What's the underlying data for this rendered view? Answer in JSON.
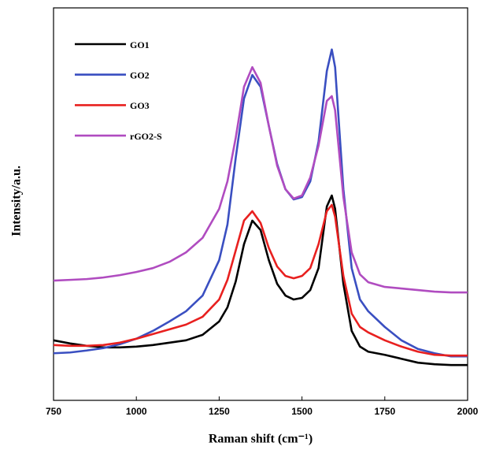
{
  "chart_data": {
    "type": "line",
    "x_label": "Raman shift (cm⁻¹)",
    "y_label": "Intensity/a.u.",
    "x": [
      750,
      800,
      850,
      900,
      950,
      1000,
      1050,
      1100,
      1150,
      1200,
      1250,
      1275,
      1300,
      1325,
      1350,
      1375,
      1400,
      1425,
      1450,
      1475,
      1500,
      1525,
      1550,
      1575,
      1590,
      1600,
      1625,
      1650,
      1675,
      1700,
      1750,
      1800,
      1850,
      1900,
      1950,
      2000
    ],
    "series": [
      {
        "name": "GO1",
        "color": "#000000",
        "values": [
          15.3,
          14.5,
          13.9,
          13.5,
          13.5,
          13.7,
          14.1,
          14.7,
          15.3,
          16.7,
          20.1,
          23.7,
          30.3,
          39.8,
          45.8,
          43.4,
          35.7,
          29.7,
          26.7,
          25.7,
          26.1,
          28.1,
          33.7,
          49.4,
          52.2,
          48.8,
          29.7,
          17.7,
          13.7,
          12.4,
          11.6,
          10.6,
          9.6,
          9.2,
          9.0,
          9.0
        ]
      },
      {
        "name": "GO2",
        "color": "#3a4fc1",
        "values": [
          12.0,
          12.2,
          12.7,
          13.3,
          14.3,
          15.7,
          17.7,
          20.1,
          22.7,
          26.7,
          35.7,
          44.8,
          61.8,
          76.9,
          82.9,
          79.9,
          69.9,
          60.2,
          53.8,
          51.2,
          51.8,
          55.8,
          65.9,
          83.9,
          89.4,
          84.9,
          53.8,
          33.7,
          25.7,
          22.7,
          18.7,
          15.3,
          13.1,
          12.0,
          11.2,
          11.2
        ]
      },
      {
        "name": "GO3",
        "color": "#e8201f",
        "values": [
          14.1,
          13.9,
          13.9,
          14.1,
          14.7,
          15.7,
          16.9,
          18.1,
          19.3,
          21.3,
          25.7,
          30.7,
          38.2,
          45.8,
          48.2,
          45.2,
          38.8,
          34.1,
          31.7,
          31.1,
          31.7,
          33.7,
          39.8,
          48.2,
          49.8,
          46.8,
          31.7,
          22.1,
          18.7,
          17.3,
          15.3,
          13.7,
          12.4,
          11.6,
          11.4,
          11.4
        ]
      },
      {
        "name": "rGO2-S",
        "color": "#b04cc0",
        "values": [
          30.5,
          30.7,
          30.9,
          31.3,
          31.9,
          32.7,
          33.7,
          35.3,
          37.7,
          41.4,
          48.8,
          55.8,
          66.9,
          79.9,
          84.9,
          80.9,
          69.9,
          59.8,
          53.8,
          51.4,
          52.2,
          56.8,
          64.9,
          76.3,
          77.5,
          73.9,
          51.8,
          37.7,
          32.1,
          30.1,
          28.9,
          28.5,
          28.1,
          27.7,
          27.5,
          27.5
        ]
      }
    ],
    "xlim": [
      750,
      2000
    ],
    "xticks": [
      750,
      1000,
      1250,
      1500,
      1750,
      2000
    ],
    "ylim": [
      0,
      100
    ],
    "legend": "upper left"
  }
}
